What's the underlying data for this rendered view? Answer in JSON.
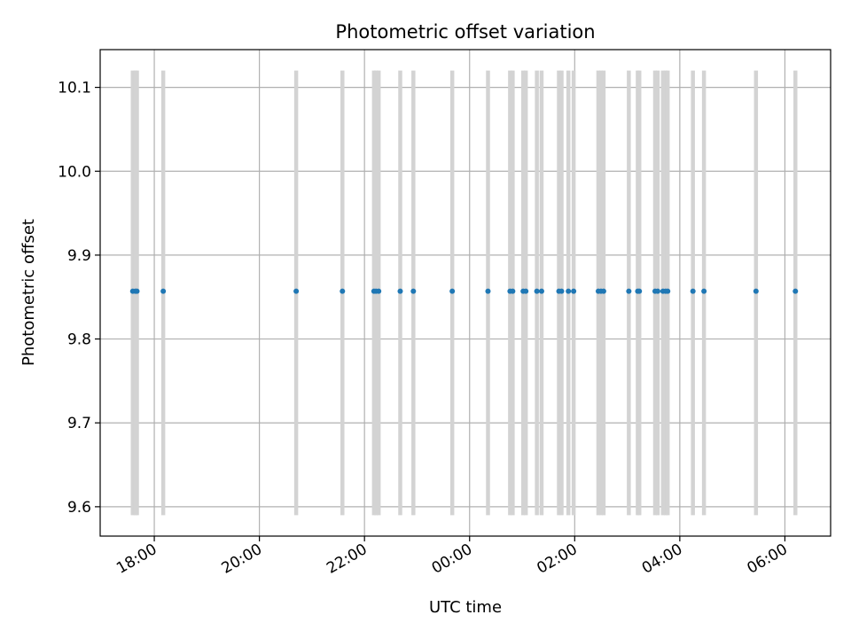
{
  "chart_data": {
    "type": "scatter",
    "title": "Photometric offset variation",
    "xlabel": "UTC time",
    "ylabel": "Photometric offset",
    "x_axis": "time (hours since 00:00 of the first night, values >= 24 wrap past midnight)",
    "xlim": [
      16.97,
      30.87
    ],
    "ylim": [
      9.565,
      10.145
    ],
    "grid": true,
    "x_ticks": [
      {
        "value": 18,
        "label": "18:00"
      },
      {
        "value": 20,
        "label": "20:00"
      },
      {
        "value": 22,
        "label": "22:00"
      },
      {
        "value": 24,
        "label": "00:00"
      },
      {
        "value": 26,
        "label": "02:00"
      },
      {
        "value": 28,
        "label": "04:00"
      },
      {
        "value": 30,
        "label": "06:00"
      }
    ],
    "y_ticks": [
      {
        "value": 9.6,
        "label": "9.6"
      },
      {
        "value": 9.7,
        "label": "9.7"
      },
      {
        "value": 9.8,
        "label": "9.8"
      },
      {
        "value": 9.9,
        "label": "9.9"
      },
      {
        "value": 10.0,
        "label": "10.0"
      },
      {
        "value": 10.1,
        "label": "10.1"
      }
    ],
    "marker_color": "#1f77b4",
    "band_color": "#d3d3d3",
    "band_range": [
      9.59,
      10.12
    ],
    "x": [
      17.59,
      17.64,
      17.67,
      18.17,
      20.7,
      21.58,
      22.18,
      22.22,
      22.27,
      22.68,
      22.93,
      23.67,
      24.35,
      24.77,
      24.82,
      25.02,
      25.07,
      25.28,
      25.37,
      25.7,
      25.75,
      25.88,
      25.98,
      26.45,
      26.5,
      26.55,
      27.03,
      27.2,
      27.23,
      27.53,
      27.58,
      27.68,
      27.73,
      27.77,
      28.25,
      28.46,
      29.45,
      30.2
    ],
    "y": [
      9.857,
      9.857,
      9.857,
      9.857,
      9.857,
      9.857,
      9.857,
      9.857,
      9.857,
      9.857,
      9.857,
      9.857,
      9.857,
      9.857,
      9.857,
      9.857,
      9.857,
      9.857,
      9.857,
      9.857,
      9.857,
      9.857,
      9.857,
      9.857,
      9.857,
      9.857,
      9.857,
      9.857,
      9.857,
      9.857,
      9.857,
      9.857,
      9.857,
      9.857,
      9.857,
      9.857,
      9.857,
      9.857
    ]
  }
}
